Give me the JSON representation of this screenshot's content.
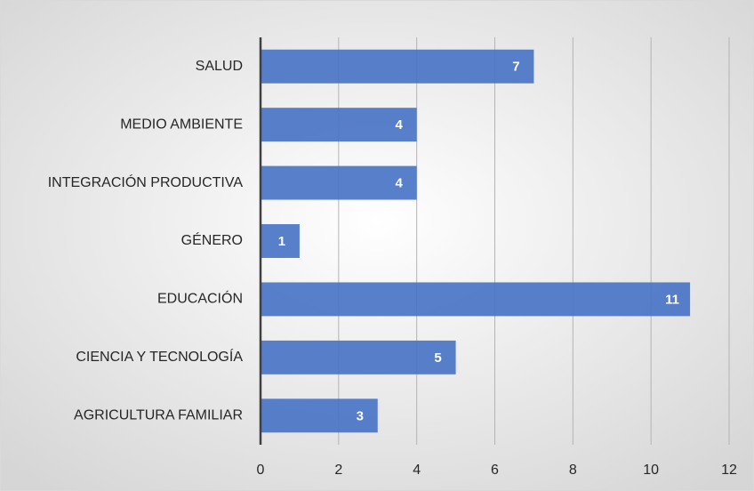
{
  "chart_data": {
    "type": "bar",
    "orientation": "horizontal",
    "categories": [
      "SALUD",
      "MEDIO AMBIENTE",
      "INTEGRACIÓN PRODUCTIVA",
      "GÉNERO",
      "EDUCACIÓN",
      "CIENCIA Y TECNOLOGÍA",
      "AGRICULTURA FAMILIAR"
    ],
    "values": [
      7,
      4,
      4,
      1,
      11,
      5,
      3
    ],
    "color": "#4a74c5",
    "xlim": [
      0,
      12
    ],
    "xticks": [
      0,
      2,
      4,
      6,
      8,
      10,
      12
    ],
    "grid": true
  }
}
